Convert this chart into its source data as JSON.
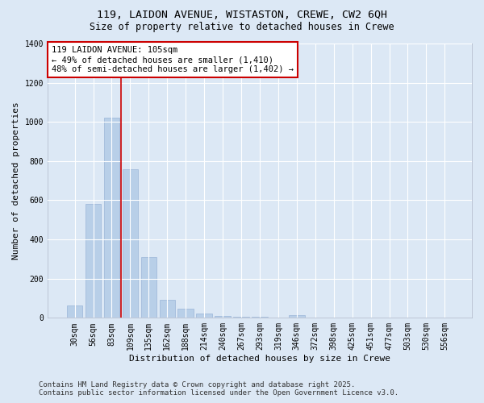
{
  "title_line1": "119, LAIDON AVENUE, WISTASTON, CREWE, CW2 6QH",
  "title_line2": "Size of property relative to detached houses in Crewe",
  "xlabel": "Distribution of detached houses by size in Crewe",
  "ylabel": "Number of detached properties",
  "categories": [
    "30sqm",
    "56sqm",
    "83sqm",
    "109sqm",
    "135sqm",
    "162sqm",
    "188sqm",
    "214sqm",
    "240sqm",
    "267sqm",
    "293sqm",
    "319sqm",
    "346sqm",
    "372sqm",
    "398sqm",
    "425sqm",
    "451sqm",
    "477sqm",
    "503sqm",
    "530sqm",
    "556sqm"
  ],
  "values": [
    65,
    580,
    1020,
    760,
    310,
    90,
    45,
    20,
    10,
    5,
    5,
    0,
    15,
    0,
    0,
    0,
    0,
    0,
    0,
    0,
    0
  ],
  "bar_color": "#b8cfe8",
  "bar_edgecolor": "#9ab5d8",
  "redline_color": "#cc0000",
  "redline_x": 2.5,
  "annotation_text": "119 LAIDON AVENUE: 105sqm\n← 49% of detached houses are smaller (1,410)\n48% of semi-detached houses are larger (1,402) →",
  "annotation_box_edgecolor": "#cc0000",
  "annotation_box_facecolor": "#ffffff",
  "ylim": [
    0,
    1400
  ],
  "yticks": [
    0,
    200,
    400,
    600,
    800,
    1000,
    1200,
    1400
  ],
  "background_color": "#dce8f5",
  "grid_color": "#ffffff",
  "footer_line1": "Contains HM Land Registry data © Crown copyright and database right 2025.",
  "footer_line2": "Contains public sector information licensed under the Open Government Licence v3.0.",
  "title_fontsize": 9.5,
  "subtitle_fontsize": 8.5,
  "axis_label_fontsize": 8,
  "tick_fontsize": 7,
  "annotation_fontsize": 7.5,
  "footer_fontsize": 6.5
}
